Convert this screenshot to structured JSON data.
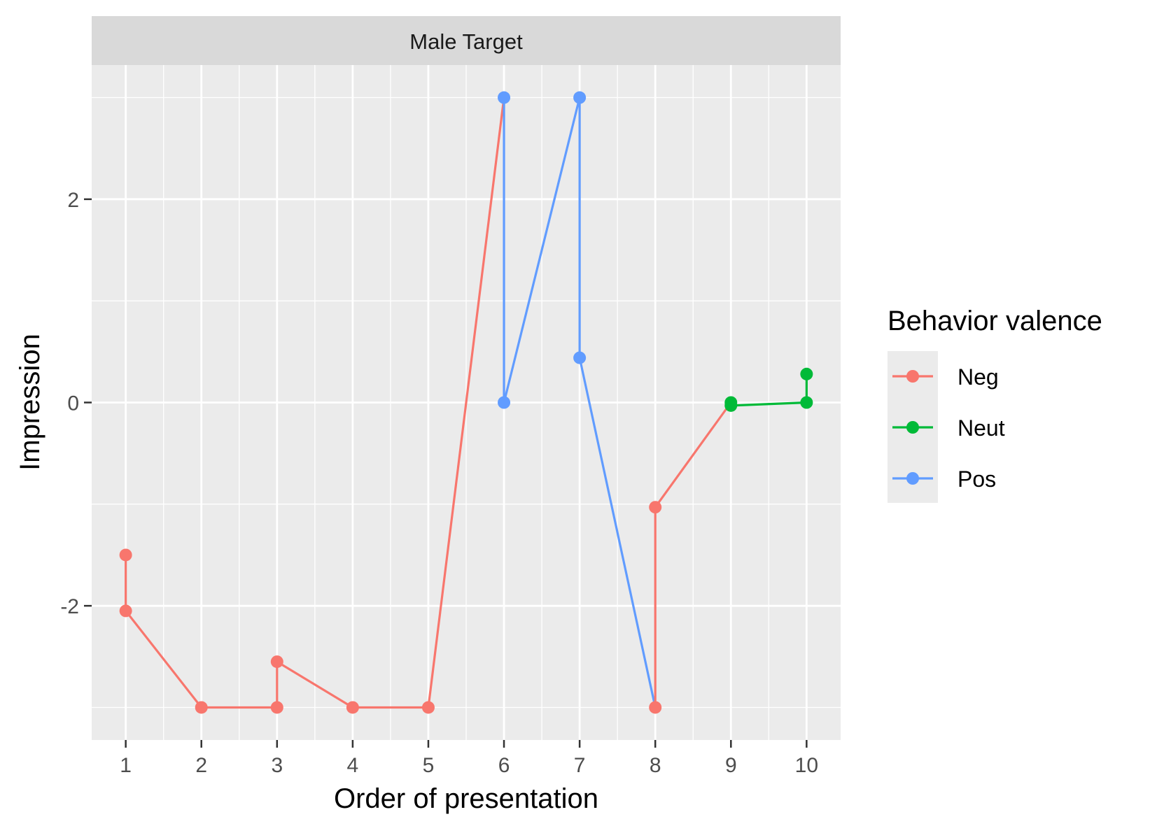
{
  "chart_data": {
    "type": "line",
    "facet_title": "Male Target",
    "xlabel": "Order of presentation",
    "ylabel": "Impression",
    "x_ticks": [
      1,
      2,
      3,
      4,
      5,
      6,
      7,
      8,
      9,
      10
    ],
    "y_ticks": [
      -2,
      0,
      2
    ],
    "xlim": [
      0.55,
      10.45
    ],
    "ylim": [
      -3.32,
      3.32
    ],
    "grid": true,
    "legend": {
      "title": "Behavior valence",
      "position": "right",
      "entries": [
        "Neg",
        "Neut",
        "Pos"
      ]
    },
    "colors": {
      "Neg": "#F8766D",
      "Neut": "#00BA38",
      "Pos": "#619CFF"
    },
    "path": [
      {
        "x": 1,
        "y": -1.5,
        "group": "Neg"
      },
      {
        "x": 1,
        "y": -2.05,
        "group": "Neg"
      },
      {
        "x": 2,
        "y": -3.0,
        "group": "Neg"
      },
      {
        "x": 3,
        "y": -3.0,
        "group": "Neg"
      },
      {
        "x": 3,
        "y": -2.55,
        "group": "Neg"
      },
      {
        "x": 4,
        "y": -3.0,
        "group": "Neg"
      },
      {
        "x": 5,
        "y": -3.0,
        "group": "Neg"
      },
      {
        "x": 6,
        "y": 3.0,
        "group": "Pos"
      },
      {
        "x": 6,
        "y": 0.0,
        "group": "Pos"
      },
      {
        "x": 7,
        "y": 3.0,
        "group": "Pos"
      },
      {
        "x": 7,
        "y": 0.44,
        "group": "Pos"
      },
      {
        "x": 8,
        "y": -3.0,
        "group": "Neg"
      },
      {
        "x": 8,
        "y": -1.03,
        "group": "Neg"
      },
      {
        "x": 9,
        "y": 0.0,
        "group": "Neut"
      },
      {
        "x": 9,
        "y": -0.03,
        "group": "Neut"
      },
      {
        "x": 10,
        "y": 0.0,
        "group": "Neut"
      },
      {
        "x": 10,
        "y": 0.28,
        "group": "Neut"
      }
    ]
  }
}
